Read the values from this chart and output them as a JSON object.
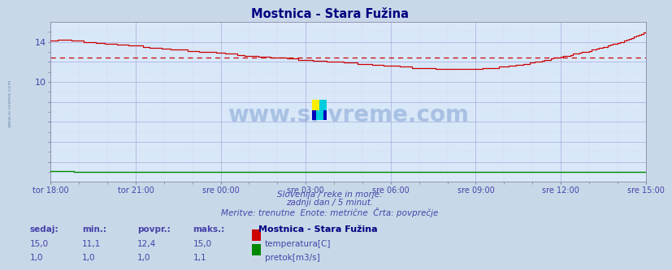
{
  "title": "Mostnica - Stara Fužina",
  "title_color": "#000080",
  "bg_color": "#c8d8e8",
  "plot_bg_color": "#d8e8f8",
  "grid_color_major": "#aaaadd",
  "grid_color_minor": "#ccccee",
  "x_tick_labels": [
    "tor 18:00",
    "tor 21:00",
    "sre 00:00",
    "sre 03:00",
    "sre 06:00",
    "sre 09:00",
    "sre 12:00",
    "sre 15:00"
  ],
  "x_tick_positions": [
    0,
    36,
    72,
    108,
    144,
    180,
    216,
    252
  ],
  "total_points": 252,
  "ylim": [
    8.0,
    15.5
  ],
  "yticks": [
    10,
    14
  ],
  "temp_avg": 12.4,
  "subtitle1": "Slovenija / reke in morje.",
  "subtitle2": "zadnji dan / 5 minut.",
  "subtitle3": "Meritve: trenutne  Enote: metrične  Črta: povprečje",
  "subtitle_color": "#4444aa",
  "label_color": "#4444aa",
  "tick_color": "#4444aa",
  "watermark": "www.si-vreme.com",
  "watermark_color": "#3060b0",
  "legend_title": "Mostnica - Stara Fužina",
  "legend_items": [
    "temperatura[C]",
    "pretok[m3/s]"
  ],
  "legend_colors": [
    "#cc0000",
    "#008800"
  ],
  "table_headers": [
    "sedaj:",
    "min.:",
    "povpr.:",
    "maks.:"
  ],
  "table_temp": [
    "15,0",
    "11,1",
    "12,4",
    "15,0"
  ],
  "table_pretok": [
    "1,0",
    "1,0",
    "1,0",
    "1,1"
  ],
  "temp_line_color": "#cc0000",
  "pretok_line_color": "#008800",
  "avg_line_color": "#cc0000",
  "side_label": "www.si-vreme.com",
  "side_label_color": "#7090b0",
  "temp_waypoints_x": [
    0,
    5,
    12,
    20,
    30,
    36,
    48,
    60,
    72,
    84,
    96,
    108,
    120,
    132,
    144,
    156,
    168,
    180,
    192,
    204,
    216,
    228,
    236,
    244,
    252
  ],
  "temp_waypoints_y": [
    14.1,
    14.2,
    14.1,
    13.9,
    13.7,
    13.6,
    13.3,
    13.1,
    12.9,
    12.6,
    12.4,
    12.2,
    12.0,
    11.8,
    11.6,
    11.4,
    11.3,
    11.3,
    11.5,
    11.9,
    12.5,
    13.1,
    13.6,
    14.2,
    15.0
  ]
}
